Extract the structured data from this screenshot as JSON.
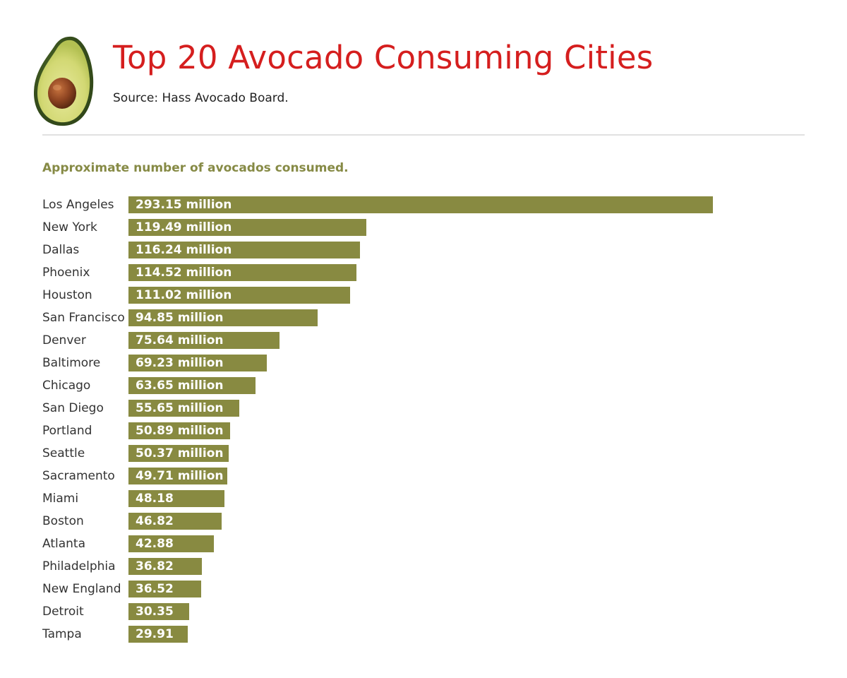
{
  "header": {
    "title": "Top 20 Avocado Consuming Cities",
    "source": "Source: Hass Avocado Board.",
    "logo_icon": "avocado-half-icon"
  },
  "colors": {
    "title": "#d51e1e",
    "bar": "#888a41",
    "subtitle": "#868a45",
    "divider": "#e1e1e1"
  },
  "chart_data": {
    "type": "bar",
    "orientation": "horizontal",
    "title": "Approximate number of avocados consumed.",
    "xlabel": "",
    "ylabel": "",
    "unit": "million",
    "xlim": [
      0,
      293.15
    ],
    "grid": false,
    "categories": [
      "Los Angeles",
      "New York",
      "Dallas",
      "Phoenix",
      "Houston",
      "San Francisco",
      "Denver",
      "Baltimore",
      "Chicago",
      "San Diego",
      "Portland",
      "Seattle",
      "Sacramento",
      "Miami",
      "Boston",
      "Atlanta",
      "Philadelphia",
      "New England",
      "Detroit",
      "Tampa"
    ],
    "values": [
      293.15,
      119.49,
      116.24,
      114.52,
      111.02,
      94.85,
      75.64,
      69.23,
      63.65,
      55.65,
      50.89,
      50.37,
      49.71,
      48.18,
      46.82,
      42.88,
      36.82,
      36.52,
      30.35,
      29.91
    ],
    "labels": [
      "293.15 million",
      "119.49 million",
      "116.24 million",
      "114.52 million",
      "111.02 million",
      "94.85 million",
      "75.64 million",
      "69.23 million",
      "63.65 million",
      "55.65 million",
      "50.89 million",
      "50.37 million",
      "49.71 million",
      "48.18",
      "46.82",
      "42.88",
      "36.82",
      "36.52",
      "30.35",
      "29.91"
    ]
  }
}
